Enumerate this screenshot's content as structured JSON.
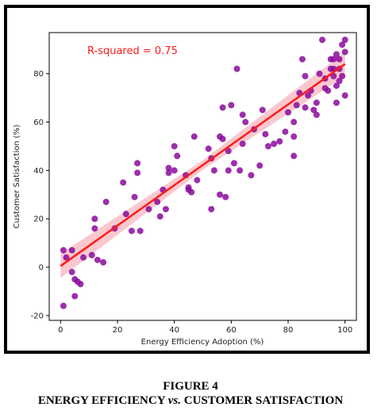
{
  "figure": {
    "number_label": "FIGURE 4",
    "caption_left": "ENERGY EFFICIENCY",
    "caption_vs": "vs.",
    "caption_right": "CUSTOMER SATISFACTION"
  },
  "chart_data": {
    "type": "scatter",
    "xlabel": "Energy Efficiency Adoption (%)",
    "ylabel": "Customer Satisfaction (%)",
    "xlim": [
      -4,
      104
    ],
    "ylim": [
      -22,
      97
    ],
    "xticks": [
      0,
      20,
      40,
      60,
      80,
      100
    ],
    "yticks": [
      -20,
      0,
      20,
      40,
      60,
      80
    ],
    "annotation": "R-squared = 0.75",
    "grid": false,
    "colors": {
      "points": "#8b0a9c",
      "fit_line": "#ff1a1a",
      "band": "#f7b6bd",
      "annotation": "#ff1a1a"
    },
    "regression": {
      "x": [
        0,
        100
      ],
      "y": [
        0.5,
        84
      ]
    },
    "points": [
      [
        1,
        7
      ],
      [
        1,
        -16
      ],
      [
        2,
        4
      ],
      [
        4,
        7
      ],
      [
        4,
        -2
      ],
      [
        5,
        -12
      ],
      [
        5,
        -5
      ],
      [
        6,
        -6
      ],
      [
        7,
        -7
      ],
      [
        8,
        4
      ],
      [
        11,
        5
      ],
      [
        12,
        20
      ],
      [
        12,
        16
      ],
      [
        13,
        3
      ],
      [
        15,
        2
      ],
      [
        16,
        27
      ],
      [
        19,
        16
      ],
      [
        22,
        35
      ],
      [
        23,
        22
      ],
      [
        25,
        15
      ],
      [
        26,
        29
      ],
      [
        27,
        43
      ],
      [
        27,
        39
      ],
      [
        28,
        15
      ],
      [
        31,
        24
      ],
      [
        34,
        27
      ],
      [
        35,
        21
      ],
      [
        36,
        32
      ],
      [
        37,
        24
      ],
      [
        38,
        39
      ],
      [
        38,
        41
      ],
      [
        40,
        40
      ],
      [
        40,
        50
      ],
      [
        41,
        46
      ],
      [
        44,
        38
      ],
      [
        45,
        32
      ],
      [
        45,
        33
      ],
      [
        46,
        31
      ],
      [
        47,
        54
      ],
      [
        48,
        36
      ],
      [
        52,
        49
      ],
      [
        53,
        24
      ],
      [
        53,
        45
      ],
      [
        54,
        40
      ],
      [
        56,
        30
      ],
      [
        56,
        54
      ],
      [
        57,
        66
      ],
      [
        57,
        53
      ],
      [
        58,
        29
      ],
      [
        59,
        48
      ],
      [
        59,
        40
      ],
      [
        60,
        67
      ],
      [
        61,
        43
      ],
      [
        62,
        82
      ],
      [
        63,
        40
      ],
      [
        64,
        51
      ],
      [
        64,
        63
      ],
      [
        65,
        60
      ],
      [
        67,
        38
      ],
      [
        68,
        57
      ],
      [
        70,
        42
      ],
      [
        71,
        65
      ],
      [
        72,
        55
      ],
      [
        73,
        50
      ],
      [
        75,
        51
      ],
      [
        77,
        52
      ],
      [
        79,
        56
      ],
      [
        80,
        64
      ],
      [
        82,
        46
      ],
      [
        82,
        54
      ],
      [
        82,
        60
      ],
      [
        83,
        67
      ],
      [
        84,
        72
      ],
      [
        85,
        86
      ],
      [
        86,
        79
      ],
      [
        86,
        66
      ],
      [
        87,
        71
      ],
      [
        88,
        73
      ],
      [
        89,
        65
      ],
      [
        90,
        63
      ],
      [
        90,
        68
      ],
      [
        91,
        80
      ],
      [
        92,
        94
      ],
      [
        93,
        74
      ],
      [
        93,
        78
      ],
      [
        94,
        73
      ],
      [
        95,
        86
      ],
      [
        95,
        82
      ],
      [
        96,
        82
      ],
      [
        96,
        79
      ],
      [
        96,
        86
      ],
      [
        97,
        75
      ],
      [
        97,
        68
      ],
      [
        97,
        88
      ],
      [
        98,
        86
      ],
      [
        98,
        82
      ],
      [
        98,
        77
      ],
      [
        99,
        92
      ],
      [
        99,
        79
      ],
      [
        100,
        94
      ],
      [
        100,
        71
      ],
      [
        100,
        89
      ]
    ]
  }
}
